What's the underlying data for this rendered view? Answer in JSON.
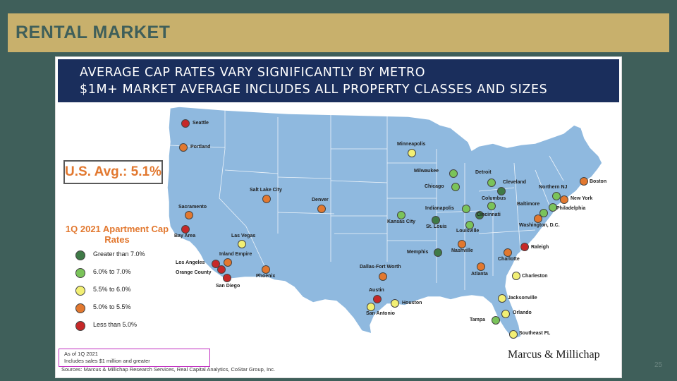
{
  "slide": {
    "title": "RENTAL MARKET",
    "page_number": "25"
  },
  "panel": {
    "header_line1": "AVERAGE CAP RATES VARY SIGNIFICANTLY BY METRO",
    "header_line2": "$1M+ MARKET AVERAGE INCLUDES ALL PROPERTY CLASSES AND SIZES",
    "us_average": "U.S. Avg.: 5.1%",
    "brand": "Marcus & Millichap",
    "notes": {
      "line1": "As of 1Q 2021",
      "line2": "Includes sales $1 million and greater",
      "sources": "Sources: Marcus & Millichap Research Services, Real Capital Analytics, CoStar Group, Inc."
    }
  },
  "legend": {
    "title": "1Q 2021 Apartment Cap Rates",
    "items": [
      {
        "label": "Greater than 7.0%",
        "color": "#3f7a47"
      },
      {
        "label": "6.0% to 7.0%",
        "color": "#7ac35a"
      },
      {
        "label": "5.5% to 6.0%",
        "color": "#f2ef74"
      },
      {
        "label": "5.0% to 5.5%",
        "color": "#e2782f"
      },
      {
        "label": "Less than 5.0%",
        "color": "#c62828"
      }
    ]
  },
  "map": {
    "land_color": "#8fb9df",
    "cities": [
      {
        "name": "Seattle",
        "tier": 4
      },
      {
        "name": "Portland",
        "tier": 3
      },
      {
        "name": "Sacramento",
        "tier": 3
      },
      {
        "name": "Bay Area",
        "tier": 4
      },
      {
        "name": "Las Vegas",
        "tier": 2
      },
      {
        "name": "Inland Empire",
        "tier": 3
      },
      {
        "name": "Los Angeles",
        "tier": 4
      },
      {
        "name": "Orange County",
        "tier": 4
      },
      {
        "name": "San Diego",
        "tier": 4
      },
      {
        "name": "Phoenix",
        "tier": 3
      },
      {
        "name": "Salt Lake City",
        "tier": 3
      },
      {
        "name": "Denver",
        "tier": 3
      },
      {
        "name": "Minneapolis",
        "tier": 2
      },
      {
        "name": "Kansas City",
        "tier": 1
      },
      {
        "name": "St. Louis",
        "tier": 0
      },
      {
        "name": "Dallas-Fort Worth",
        "tier": 3
      },
      {
        "name": "Austin",
        "tier": 4
      },
      {
        "name": "San Antonio",
        "tier": 2
      },
      {
        "name": "Houston",
        "tier": 2
      },
      {
        "name": "Milwaukee",
        "tier": 1
      },
      {
        "name": "Chicago",
        "tier": 1
      },
      {
        "name": "Detroit",
        "tier": 1
      },
      {
        "name": "Cleveland",
        "tier": 0
      },
      {
        "name": "Indianapolis",
        "tier": 1
      },
      {
        "name": "Columbus",
        "tier": 1
      },
      {
        "name": "Cincinnati",
        "tier": 0
      },
      {
        "name": "Louisville",
        "tier": 1
      },
      {
        "name": "Memphis",
        "tier": 0
      },
      {
        "name": "Nashville",
        "tier": 3
      },
      {
        "name": "Atlanta",
        "tier": 3
      },
      {
        "name": "Charlotte",
        "tier": 3
      },
      {
        "name": "Raleigh",
        "tier": 4
      },
      {
        "name": "Charleston",
        "tier": 2
      },
      {
        "name": "Jacksonville",
        "tier": 2
      },
      {
        "name": "Orlando",
        "tier": 2
      },
      {
        "name": "Tampa",
        "tier": 1
      },
      {
        "name": "Southeast FL",
        "tier": 2
      },
      {
        "name": "Washington, D.C.",
        "tier": 3
      },
      {
        "name": "Baltimore",
        "tier": 1
      },
      {
        "name": "Philadelphia",
        "tier": 1
      },
      {
        "name": "Northern NJ",
        "tier": 1
      },
      {
        "name": "New York",
        "tier": 3
      },
      {
        "name": "Boston",
        "tier": 3
      }
    ]
  }
}
